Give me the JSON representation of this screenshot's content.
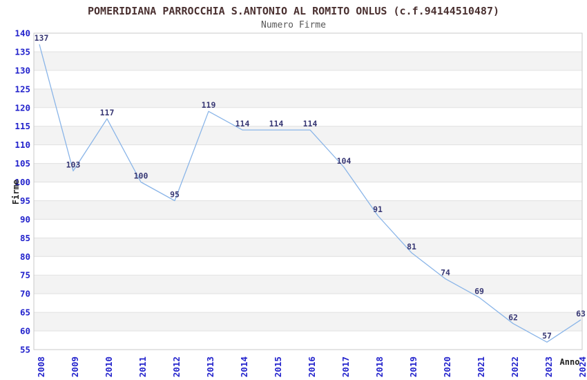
{
  "header": {
    "title": "POMERIDIANA PARROCCHIA S.ANTONIO AL ROMITO ONLUS (c.f.94144510487)",
    "subtitle": "Numero Firme"
  },
  "chart_data": {
    "type": "line",
    "title": "POMERIDIANA PARROCCHIA S.ANTONIO AL ROMITO ONLUS (c.f.94144510487)",
    "subtitle": "Numero Firme",
    "xlabel": "Anno",
    "ylabel": "Firme",
    "categories": [
      "2008",
      "2009",
      "2010",
      "2011",
      "2012",
      "2013",
      "2014",
      "2015",
      "2016",
      "2017",
      "2018",
      "2019",
      "2020",
      "2021",
      "2022",
      "2023",
      "2024"
    ],
    "values": [
      137,
      103,
      117,
      100,
      95,
      119,
      114,
      114,
      114,
      104,
      91,
      81,
      74,
      69,
      62,
      57,
      63
    ],
    "ylim": [
      55,
      140
    ],
    "ytick_step": 5,
    "yticks": [
      55,
      60,
      65,
      70,
      75,
      80,
      85,
      90,
      95,
      100,
      105,
      110,
      115,
      120,
      125,
      130,
      135,
      140
    ],
    "grid": "horizontal-gridlines-with-alternating-bands",
    "legend": "none",
    "point_labels_visible": true
  },
  "colors": {
    "background": "#ffffff",
    "title_text": "#4a3030",
    "subtitle_text": "#575757",
    "tick_label": "#2222cc",
    "point_label": "#383874",
    "series_line": "#8ab5e8",
    "band_fill": "#f3f3f3",
    "gridline": "#e1e1e1",
    "plot_border": "#c9c9c9",
    "axis_title_text": "#222222"
  }
}
